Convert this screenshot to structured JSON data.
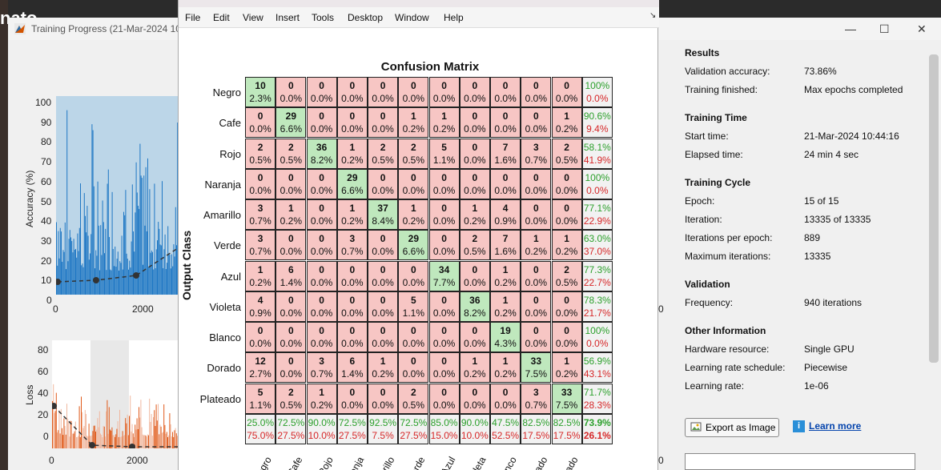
{
  "desktop": {
    "top_text": "nato"
  },
  "training_window": {
    "title": "Training Progress (21-Mar-2024 10",
    "minimize_glyph": "—",
    "maximize_glyph": "☐",
    "close_glyph": "✕",
    "accuracy_axis": {
      "label": "Accuracy (%)",
      "ticks": [
        "100",
        "90",
        "80",
        "70",
        "60",
        "50",
        "40",
        "30",
        "20",
        "10",
        "0"
      ],
      "x_ticks": [
        "0",
        "2000"
      ]
    },
    "loss_axis": {
      "label": "Loss",
      "ticks": [
        "80",
        "60",
        "40",
        "20",
        "0"
      ],
      "x_ticks": [
        "0",
        "2000"
      ]
    },
    "right_edge_tick_top": "0",
    "right_edge_tick_bottom": "0"
  },
  "info_panel": {
    "sections": [
      {
        "title": "Results",
        "rows": [
          {
            "label": "Validation accuracy:",
            "value": "73.86%"
          },
          {
            "label": "Training finished:",
            "value": "Max epochs completed"
          }
        ]
      },
      {
        "title": "Training Time",
        "rows": [
          {
            "label": "Start time:",
            "value": "21-Mar-2024 10:44:16"
          },
          {
            "label": "Elapsed time:",
            "value": "24 min 4 sec"
          }
        ]
      },
      {
        "title": "Training Cycle",
        "rows": [
          {
            "label": "Epoch:",
            "value": "15 of 15"
          },
          {
            "label": "Iteration:",
            "value": "13335 of 13335"
          },
          {
            "label": "Iterations per epoch:",
            "value": "889"
          },
          {
            "label": "Maximum iterations:",
            "value": "13335"
          }
        ]
      },
      {
        "title": "Validation",
        "rows": [
          {
            "label": "Frequency:",
            "value": "940 iterations"
          }
        ]
      },
      {
        "title": "Other Information",
        "rows": [
          {
            "label": "Hardware resource:",
            "value": "Single GPU"
          },
          {
            "label": "Learning rate schedule:",
            "value": "Piecewise"
          },
          {
            "label": "Learning rate:",
            "value": "1e-06"
          }
        ]
      }
    ],
    "export_label": "Export as Image",
    "learn_more_label": "Learn more",
    "info_glyph": "i"
  },
  "figure": {
    "menu": [
      "File",
      "Edit",
      "View",
      "Insert",
      "Tools",
      "Desktop",
      "Window",
      "Help"
    ],
    "dock_glyph": "↘",
    "title": "Confusion Matrix",
    "ylabel": "Output Class",
    "row_labels": [
      "Negro",
      "Cafe",
      "Rojo",
      "Naranja",
      "Amarillo",
      "Verde",
      "Azul",
      "Violeta",
      "Blanco",
      "Dorado",
      "Plateado"
    ],
    "col_labels_visible": [
      "Negro",
      "Cafe",
      "Rojo",
      "Naranja",
      "Amarillo",
      "Verde",
      "Azul",
      "Violeta",
      "Blanco",
      "Dorado",
      "Plateado"
    ]
  },
  "chart_data": {
    "type": "heatmap",
    "title": "Confusion Matrix",
    "ylabel": "Output Class",
    "classes": [
      "Negro",
      "Cafe",
      "Rojo",
      "Naranja",
      "Amarillo",
      "Verde",
      "Azul",
      "Violeta",
      "Blanco",
      "Dorado",
      "Plateado"
    ],
    "counts": [
      [
        10,
        0,
        0,
        0,
        0,
        0,
        0,
        0,
        0,
        0,
        0
      ],
      [
        0,
        29,
        0,
        0,
        0,
        1,
        1,
        0,
        0,
        0,
        1
      ],
      [
        2,
        2,
        36,
        1,
        2,
        2,
        5,
        0,
        7,
        3,
        2
      ],
      [
        0,
        0,
        0,
        29,
        0,
        0,
        0,
        0,
        0,
        0,
        0
      ],
      [
        3,
        1,
        0,
        1,
        37,
        1,
        0,
        1,
        4,
        0,
        0
      ],
      [
        3,
        0,
        0,
        3,
        0,
        29,
        0,
        2,
        7,
        1,
        1
      ],
      [
        1,
        6,
        0,
        0,
        0,
        0,
        34,
        0,
        1,
        0,
        2
      ],
      [
        4,
        0,
        0,
        0,
        0,
        5,
        0,
        36,
        1,
        0,
        0
      ],
      [
        0,
        0,
        0,
        0,
        0,
        0,
        0,
        0,
        19,
        0,
        0
      ],
      [
        12,
        0,
        3,
        6,
        1,
        0,
        0,
        1,
        1,
        33,
        1
      ],
      [
        5,
        2,
        1,
        0,
        0,
        2,
        0,
        0,
        0,
        3,
        33
      ]
    ],
    "percents": [
      [
        "2.3%",
        "0.0%",
        "0.0%",
        "0.0%",
        "0.0%",
        "0.0%",
        "0.0%",
        "0.0%",
        "0.0%",
        "0.0%",
        "0.0%"
      ],
      [
        "0.0%",
        "6.6%",
        "0.0%",
        "0.0%",
        "0.0%",
        "0.2%",
        "0.2%",
        "0.0%",
        "0.0%",
        "0.0%",
        "0.2%"
      ],
      [
        "0.5%",
        "0.5%",
        "8.2%",
        "0.2%",
        "0.5%",
        "0.5%",
        "1.1%",
        "0.0%",
        "1.6%",
        "0.7%",
        "0.5%"
      ],
      [
        "0.0%",
        "0.0%",
        "0.0%",
        "6.6%",
        "0.0%",
        "0.0%",
        "0.0%",
        "0.0%",
        "0.0%",
        "0.0%",
        "0.0%"
      ],
      [
        "0.7%",
        "0.2%",
        "0.0%",
        "0.2%",
        "8.4%",
        "0.2%",
        "0.0%",
        "0.2%",
        "0.9%",
        "0.0%",
        "0.0%"
      ],
      [
        "0.7%",
        "0.0%",
        "0.0%",
        "0.7%",
        "0.0%",
        "6.6%",
        "0.0%",
        "0.5%",
        "1.6%",
        "0.2%",
        "0.2%"
      ],
      [
        "0.2%",
        "1.4%",
        "0.0%",
        "0.0%",
        "0.0%",
        "0.0%",
        "7.7%",
        "0.0%",
        "0.2%",
        "0.0%",
        "0.5%"
      ],
      [
        "0.9%",
        "0.0%",
        "0.0%",
        "0.0%",
        "0.0%",
        "1.1%",
        "0.0%",
        "8.2%",
        "0.2%",
        "0.0%",
        "0.0%"
      ],
      [
        "0.0%",
        "0.0%",
        "0.0%",
        "0.0%",
        "0.0%",
        "0.0%",
        "0.0%",
        "0.0%",
        "4.3%",
        "0.0%",
        "0.0%"
      ],
      [
        "2.7%",
        "0.0%",
        "0.7%",
        "1.4%",
        "0.2%",
        "0.0%",
        "0.0%",
        "0.2%",
        "0.2%",
        "7.5%",
        "0.2%"
      ],
      [
        "1.1%",
        "0.5%",
        "0.2%",
        "0.0%",
        "0.0%",
        "0.5%",
        "0.0%",
        "0.0%",
        "0.0%",
        "0.7%",
        "7.5%"
      ]
    ],
    "row_summary": [
      [
        "100%",
        "0.0%"
      ],
      [
        "90.6%",
        "9.4%"
      ],
      [
        "58.1%",
        "41.9%"
      ],
      [
        "100%",
        "0.0%"
      ],
      [
        "77.1%",
        "22.9%"
      ],
      [
        "63.0%",
        "37.0%"
      ],
      [
        "77.3%",
        "22.7%"
      ],
      [
        "78.3%",
        "21.7%"
      ],
      [
        "100%",
        "0.0%"
      ],
      [
        "56.9%",
        "43.1%"
      ],
      [
        "71.7%",
        "28.3%"
      ]
    ],
    "col_summary": [
      [
        "25.0%",
        "75.0%"
      ],
      [
        "72.5%",
        "27.5%"
      ],
      [
        "90.0%",
        "10.0%"
      ],
      [
        "72.5%",
        "27.5%"
      ],
      [
        "92.5%",
        "7.5%"
      ],
      [
        "72.5%",
        "27.5%"
      ],
      [
        "85.0%",
        "15.0%"
      ],
      [
        "90.0%",
        "10.0%"
      ],
      [
        "47.5%",
        "52.5%"
      ],
      [
        "82.5%",
        "17.5%"
      ],
      [
        "82.5%",
        "17.5%"
      ]
    ],
    "overall": [
      "73.9%",
      "26.1%"
    ],
    "colors": {
      "correct": "#bfe8bd",
      "incorrect": "#f7c6c4",
      "summary": "#f2f2f2",
      "pct_good": "#2ca02c",
      "pct_bad": "#d62728"
    }
  }
}
